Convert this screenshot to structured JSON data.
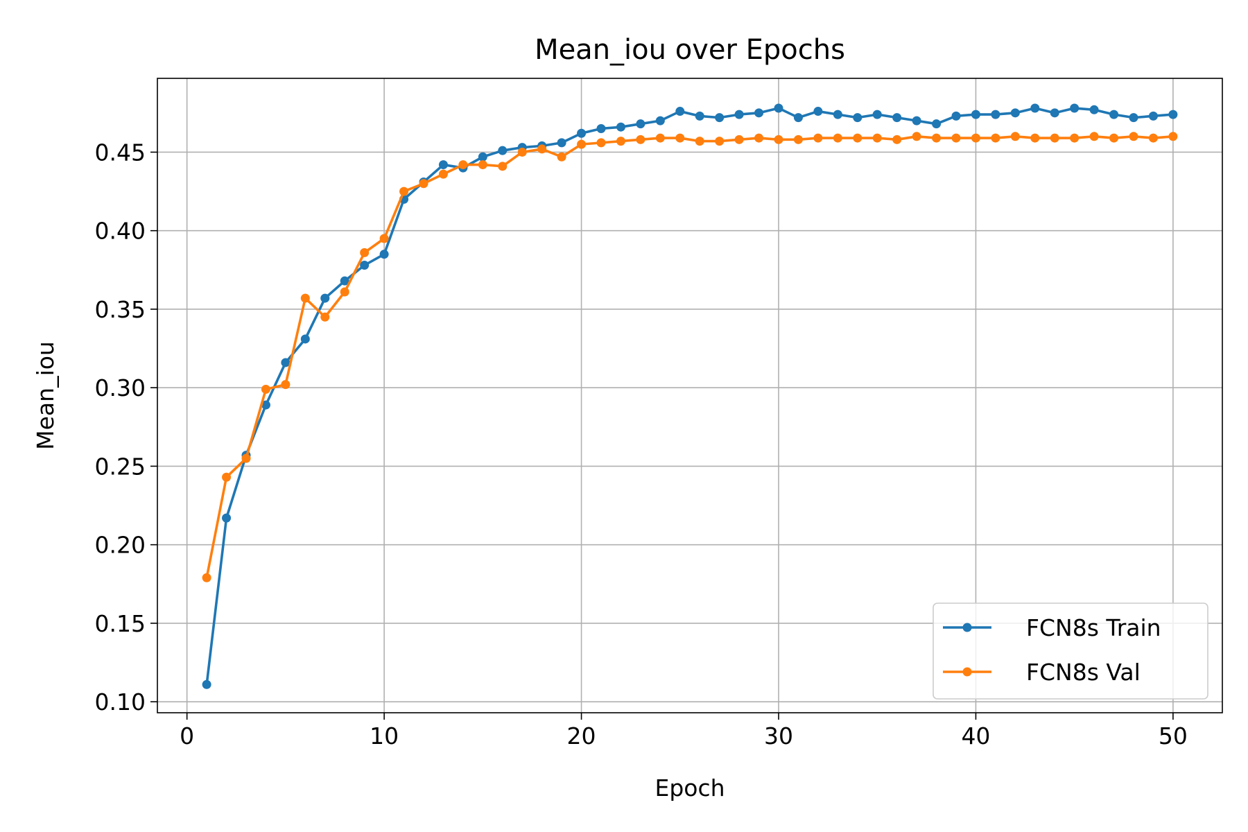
{
  "chart_data": {
    "type": "line",
    "title": "Mean_iou over Epochs",
    "xlabel": "Epoch",
    "ylabel": "Mean_iou",
    "xlim": [
      -1.5,
      52.5
    ],
    "ylim": [
      0.093,
      0.497
    ],
    "xticks": [
      0,
      10,
      20,
      30,
      40,
      50
    ],
    "yticks": [
      0.1,
      0.15,
      0.2,
      0.25,
      0.3,
      0.35,
      0.4,
      0.45
    ],
    "ytick_labels": [
      "0.10",
      "0.15",
      "0.20",
      "0.25",
      "0.30",
      "0.35",
      "0.40",
      "0.45"
    ],
    "xtick_labels": [
      "0",
      "10",
      "20",
      "30",
      "40",
      "50"
    ],
    "grid": true,
    "legend_position": "lower-right",
    "x": [
      1,
      2,
      3,
      4,
      5,
      6,
      7,
      8,
      9,
      10,
      11,
      12,
      13,
      14,
      15,
      16,
      17,
      18,
      19,
      20,
      21,
      22,
      23,
      24,
      25,
      26,
      27,
      28,
      29,
      30,
      31,
      32,
      33,
      34,
      35,
      36,
      37,
      38,
      39,
      40,
      41,
      42,
      43,
      44,
      45,
      46,
      47,
      48,
      49,
      50
    ],
    "series": [
      {
        "name": "FCN8s Train",
        "color": "#1f77b4",
        "values": [
          0.111,
          0.217,
          0.257,
          0.289,
          0.316,
          0.331,
          0.357,
          0.368,
          0.378,
          0.385,
          0.42,
          0.431,
          0.442,
          0.44,
          0.447,
          0.451,
          0.453,
          0.454,
          0.456,
          0.462,
          0.465,
          0.466,
          0.468,
          0.47,
          0.476,
          0.473,
          0.472,
          0.474,
          0.475,
          0.478,
          0.472,
          0.476,
          0.474,
          0.472,
          0.474,
          0.472,
          0.47,
          0.468,
          0.473,
          0.474,
          0.474,
          0.475,
          0.478,
          0.475,
          0.478,
          0.477,
          0.474,
          0.472,
          0.473,
          0.474
        ]
      },
      {
        "name": "FCN8s Val",
        "color": "#ff7f0e",
        "values": [
          0.179,
          0.243,
          0.255,
          0.299,
          0.302,
          0.357,
          0.345,
          0.361,
          0.386,
          0.395,
          0.425,
          0.43,
          0.436,
          0.442,
          0.442,
          0.441,
          0.45,
          0.452,
          0.447,
          0.455,
          0.456,
          0.457,
          0.458,
          0.459,
          0.459,
          0.457,
          0.457,
          0.458,
          0.459,
          0.458,
          0.458,
          0.459,
          0.459,
          0.459,
          0.459,
          0.458,
          0.46,
          0.459,
          0.459,
          0.459,
          0.459,
          0.46,
          0.459,
          0.459,
          0.459,
          0.46,
          0.459,
          0.46,
          0.459,
          0.46
        ]
      }
    ]
  }
}
